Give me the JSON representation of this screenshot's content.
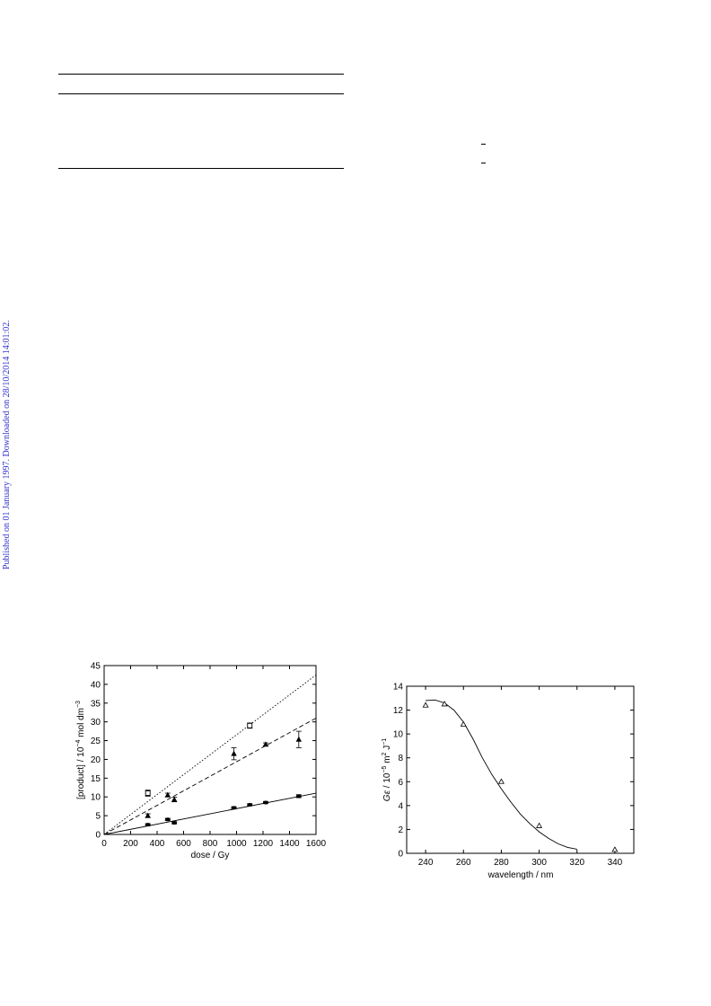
{
  "sidebar": {
    "published_text": "Published on 01 January 1997. Downloaded on 28/10/2014 14:01:02.",
    "color": "#3333cc"
  },
  "chart_data": [
    {
      "type": "scatter",
      "xlabel": "dose / Gy",
      "ylabel_html": "[product] / 10^-4 mol dm^-3",
      "ylabel_parts": [
        "[product] / 10",
        "−4",
        " mol dm",
        "−3"
      ],
      "xlim": [
        0,
        1600
      ],
      "ylim": [
        0,
        45
      ],
      "xticks": [
        0,
        200,
        400,
        600,
        800,
        1000,
        1200,
        1400,
        1600
      ],
      "yticks": [
        0,
        5,
        10,
        15,
        20,
        25,
        30,
        35,
        40,
        45
      ],
      "grid": false,
      "series": [
        {
          "marker": "open-square",
          "line": "dotted",
          "fit": [
            [
              0,
              0
            ],
            [
              1600,
              42.5
            ]
          ],
          "points": [
            {
              "x": 330,
              "y": 11.0,
              "err": 0.8
            },
            {
              "x": 1100,
              "y": 29.0,
              "err": 0.7
            }
          ]
        },
        {
          "marker": "filled-triangle",
          "line": "dashed",
          "fit": [
            [
              0,
              0
            ],
            [
              1600,
              31.0
            ]
          ],
          "points": [
            {
              "x": 330,
              "y": 5.0,
              "err": 0.5
            },
            {
              "x": 480,
              "y": 10.5,
              "err": 0.5
            },
            {
              "x": 530,
              "y": 9.3,
              "err": 0.6
            },
            {
              "x": 980,
              "y": 21.5,
              "err": 1.6
            },
            {
              "x": 1220,
              "y": 24.0,
              "err": 0.4
            },
            {
              "x": 1470,
              "y": 25.3,
              "err": 2.2
            }
          ]
        },
        {
          "marker": "filled-circle",
          "line": "solid",
          "fit": [
            [
              0,
              0
            ],
            [
              1600,
              11.0
            ]
          ],
          "points": [
            {
              "x": 330,
              "y": 2.6,
              "err": 0.3
            },
            {
              "x": 480,
              "y": 4.0,
              "err": 0.3
            },
            {
              "x": 530,
              "y": 3.1,
              "err": 0.3
            },
            {
              "x": 980,
              "y": 7.1,
              "err": 0.3
            },
            {
              "x": 1100,
              "y": 7.9,
              "err": 0.3
            },
            {
              "x": 1220,
              "y": 8.5,
              "err": 0.3
            },
            {
              "x": 1470,
              "y": 10.2,
              "err": 0.4
            }
          ]
        }
      ]
    },
    {
      "type": "scatter",
      "xlabel": "wavelength / nm",
      "ylabel_parts": [
        "G",
        "ε",
        " / 10",
        "−5",
        " m",
        "2",
        " J",
        "−1"
      ],
      "xlim": [
        230,
        350
      ],
      "ylim": [
        0,
        14
      ],
      "xticks": [
        240,
        260,
        280,
        300,
        320,
        340
      ],
      "yticks": [
        0,
        2,
        4,
        6,
        8,
        10,
        12,
        14
      ],
      "grid": false,
      "series": [
        {
          "marker": "open-triangle",
          "points": [
            {
              "x": 240,
              "y": 12.4
            },
            {
              "x": 250,
              "y": 12.5
            },
            {
              "x": 260,
              "y": 10.8
            },
            {
              "x": 280,
              "y": 6.0
            },
            {
              "x": 300,
              "y": 2.3
            },
            {
              "x": 340,
              "y": 0.3
            }
          ],
          "curve": [
            [
              240,
              12.8
            ],
            [
              245,
              12.85
            ],
            [
              250,
              12.6
            ],
            [
              255,
              12.0
            ],
            [
              260,
              11.0
            ],
            [
              265,
              9.6
            ],
            [
              270,
              8.0
            ],
            [
              275,
              6.6
            ],
            [
              280,
              5.4
            ],
            [
              285,
              4.3
            ],
            [
              290,
              3.3
            ],
            [
              295,
              2.5
            ],
            [
              300,
              1.8
            ],
            [
              305,
              1.25
            ],
            [
              310,
              0.8
            ],
            [
              315,
              0.5
            ],
            [
              320,
              0.35
            ]
          ]
        }
      ]
    }
  ]
}
